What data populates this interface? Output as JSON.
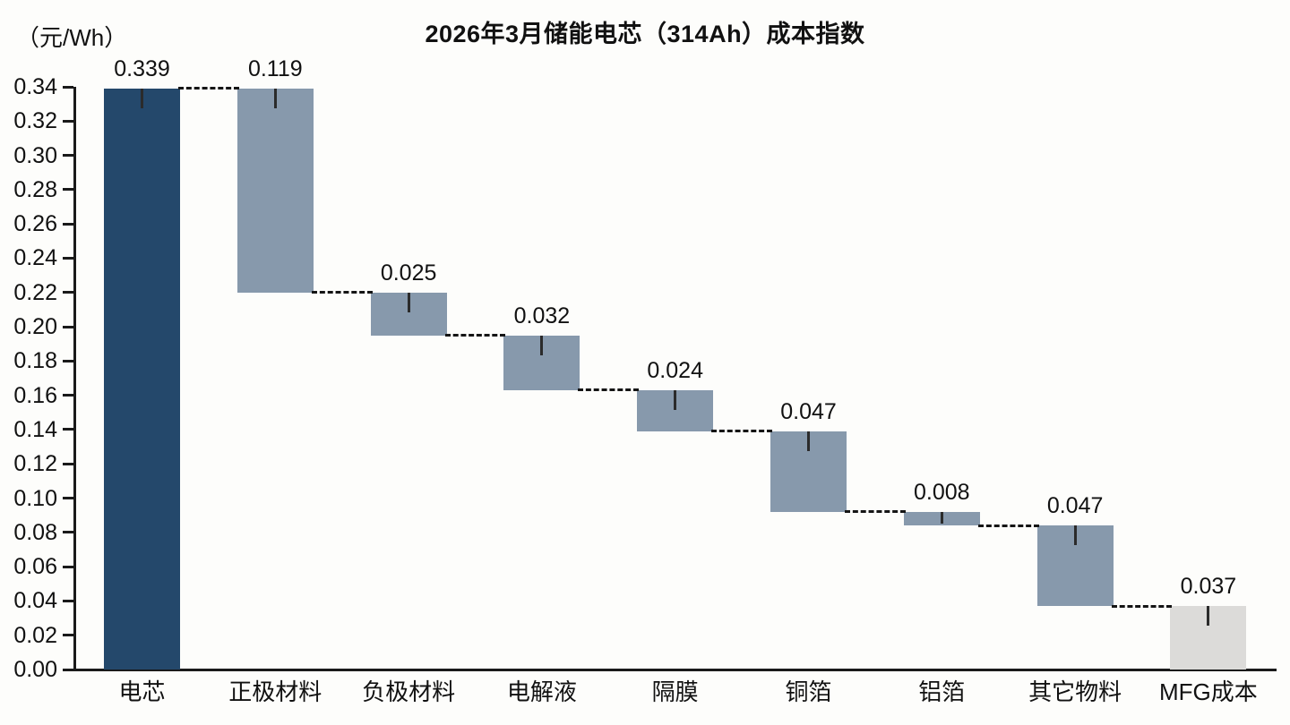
{
  "title": "2026年3月储能电芯（314Ah）成本指数",
  "y_unit_label": "（元/Wh）",
  "chart_data": {
    "type": "bar",
    "subtype": "waterfall",
    "title": "2026年3月储能电芯（314Ah）成本指数",
    "xlabel": "",
    "ylabel": "（元/Wh）",
    "categories": [
      "电芯",
      "正极材料",
      "负极材料",
      "电解液",
      "隔膜",
      "铜箔",
      "铝箔",
      "其它物料",
      "MFG成本"
    ],
    "values": [
      0.339,
      0.119,
      0.025,
      0.032,
      0.024,
      0.047,
      0.008,
      0.047,
      0.037
    ],
    "value_labels": [
      "0.339",
      "0.119",
      "0.025",
      "0.032",
      "0.024",
      "0.047",
      "0.008",
      "0.047",
      "0.037"
    ],
    "segment_bottoms": [
      0,
      0.22,
      0.195,
      0.163,
      0.139,
      0.092,
      0.084,
      0.037,
      0
    ],
    "segment_tops": [
      0.339,
      0.339,
      0.22,
      0.195,
      0.163,
      0.139,
      0.092,
      0.084,
      0.037
    ],
    "connector_levels": [
      0.339,
      0.22,
      0.195,
      0.163,
      0.139,
      0.092,
      0.084,
      0.037
    ],
    "bar_colors": [
      "#24486B",
      "#8799AC",
      "#8799AC",
      "#8799AC",
      "#8799AC",
      "#8799AC",
      "#8799AC",
      "#8799AC",
      "#DCDBD9"
    ],
    "ylim": [
      0,
      0.34
    ],
    "y_tick_step": 0.02,
    "y_tick_labels": [
      "0.00",
      "0.02",
      "0.04",
      "0.06",
      "0.08",
      "0.10",
      "0.12",
      "0.14",
      "0.16",
      "0.18",
      "0.20",
      "0.22",
      "0.24",
      "0.26",
      "0.28",
      "0.30",
      "0.32",
      "0.34"
    ],
    "grid": false,
    "legend": "none",
    "axis_color": "#1a1a1a",
    "background_color": "#fdfdfb"
  }
}
